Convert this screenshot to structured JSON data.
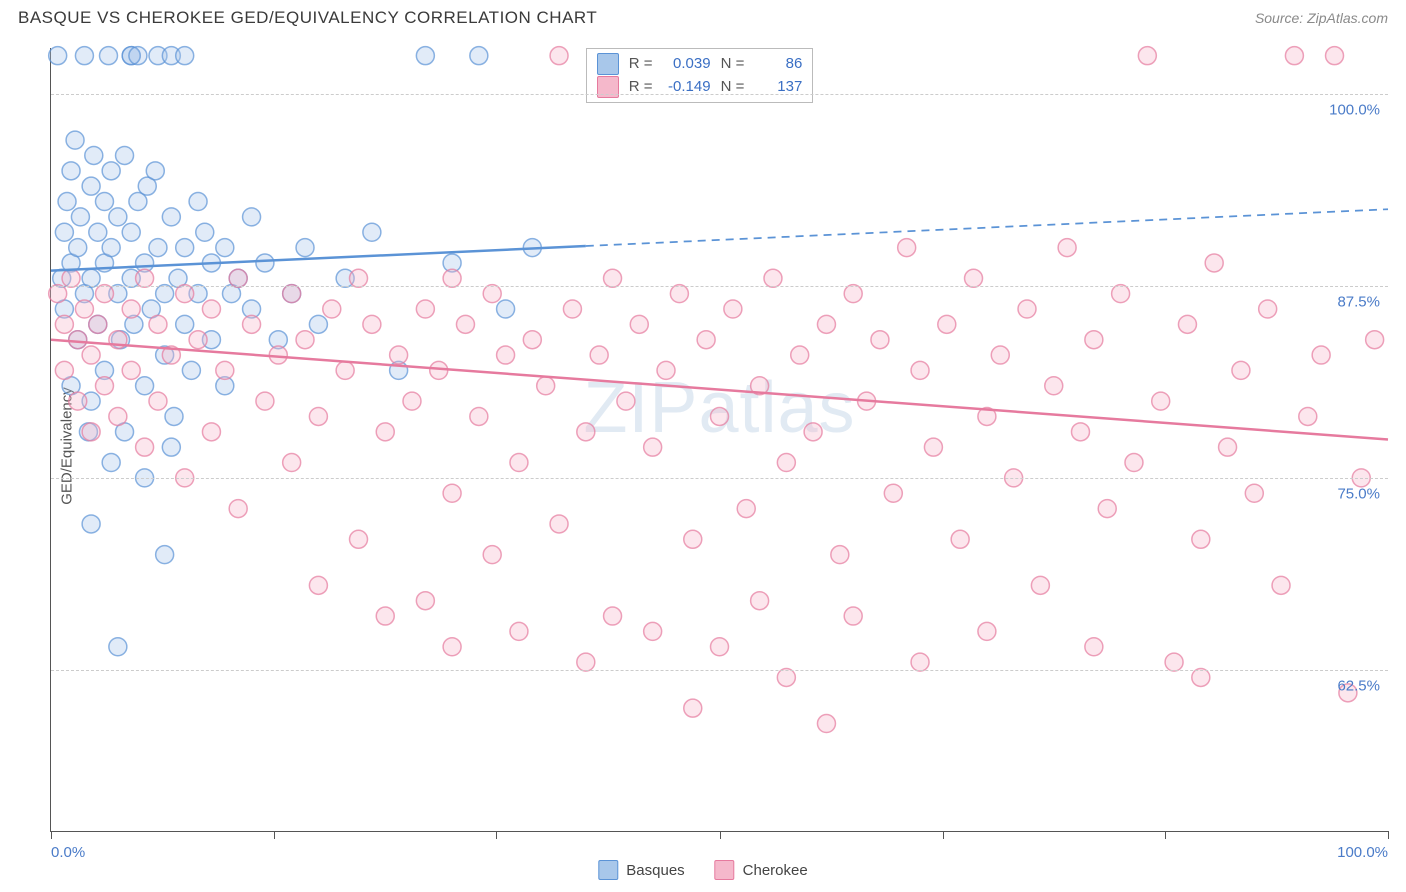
{
  "title": "BASQUE VS CHEROKEE GED/EQUIVALENCY CORRELATION CHART",
  "source": "Source: ZipAtlas.com",
  "watermark": "ZIPatlas",
  "ylabel": "GED/Equivalency",
  "chart": {
    "type": "scatter",
    "xlim": [
      0,
      100
    ],
    "ylim": [
      52,
      103
    ],
    "xtick_positions": [
      0,
      16.7,
      33.3,
      50,
      66.7,
      83.3,
      100
    ],
    "xtick_labels_shown": {
      "0": "0.0%",
      "100": "100.0%"
    },
    "ytick_positions": [
      62.5,
      75.0,
      87.5,
      100.0
    ],
    "ytick_labels": [
      "62.5%",
      "75.0%",
      "87.5%",
      "100.0%"
    ],
    "grid_color": "#cccccc",
    "background": "#ffffff",
    "axis_color": "#555555",
    "tick_label_color": "#4a7bc8",
    "marker_radius": 9,
    "marker_fill_opacity": 0.35,
    "marker_stroke_opacity": 0.7,
    "marker_stroke_width": 1.5,
    "trend_line_width": 2.5,
    "series": [
      {
        "name": "Basques",
        "color": "#5b93d6",
        "fill": "#a8c7ea",
        "stroke": "#5b93d6",
        "R": "0.039",
        "N": "86",
        "trend": {
          "x1": 0,
          "y1": 88.5,
          "x2": 100,
          "y2": 92.5,
          "solid_until_x": 40
        },
        "points": [
          [
            0.5,
            102.5
          ],
          [
            0.8,
            88
          ],
          [
            1,
            91
          ],
          [
            1,
            86
          ],
          [
            1.2,
            93
          ],
          [
            1.5,
            95
          ],
          [
            1.5,
            89
          ],
          [
            1.8,
            97
          ],
          [
            2,
            90
          ],
          [
            2,
            84
          ],
          [
            2.2,
            92
          ],
          [
            2.5,
            102.5
          ],
          [
            2.5,
            87
          ],
          [
            3,
            94
          ],
          [
            3,
            88
          ],
          [
            3,
            80
          ],
          [
            3.2,
            96
          ],
          [
            3.5,
            91
          ],
          [
            3.5,
            85
          ],
          [
            4,
            93
          ],
          [
            4,
            89
          ],
          [
            4,
            82
          ],
          [
            4.3,
            102.5
          ],
          [
            4.5,
            95
          ],
          [
            4.5,
            90
          ],
          [
            5,
            87
          ],
          [
            5,
            92
          ],
          [
            5.2,
            84
          ],
          [
            5.5,
            96
          ],
          [
            5.5,
            78
          ],
          [
            6,
            91
          ],
          [
            6,
            88
          ],
          [
            6,
            102.5
          ],
          [
            6.2,
            85
          ],
          [
            6.5,
            93
          ],
          [
            7,
            89
          ],
          [
            7,
            81
          ],
          [
            7.2,
            94
          ],
          [
            7.5,
            86
          ],
          [
            8,
            90
          ],
          [
            8,
            102.5
          ],
          [
            8.5,
            87
          ],
          [
            8.5,
            83
          ],
          [
            9,
            92
          ],
          [
            9,
            77
          ],
          [
            9,
            102.5
          ],
          [
            9.5,
            88
          ],
          [
            10,
            85
          ],
          [
            10,
            90
          ],
          [
            10.5,
            82
          ],
          [
            11,
            87
          ],
          [
            11,
            93
          ],
          [
            12,
            89
          ],
          [
            12,
            84
          ],
          [
            13,
            90
          ],
          [
            13,
            81
          ],
          [
            14,
            88
          ],
          [
            15,
            92
          ],
          [
            15,
            86
          ],
          [
            16,
            89
          ],
          [
            17,
            84
          ],
          [
            18,
            87
          ],
          [
            19,
            90
          ],
          [
            20,
            85
          ],
          [
            22,
            88
          ],
          [
            24,
            91
          ],
          [
            26,
            82
          ],
          [
            28,
            102.5
          ],
          [
            30,
            89
          ],
          [
            32,
            102.5
          ],
          [
            34,
            86
          ],
          [
            36,
            90
          ],
          [
            3,
            72
          ],
          [
            5,
            64
          ],
          [
            6,
            102.5
          ],
          [
            7,
            75
          ],
          [
            8.5,
            70
          ],
          [
            4.5,
            76
          ],
          [
            2.8,
            78
          ],
          [
            1.5,
            81
          ],
          [
            6.5,
            102.5
          ],
          [
            10,
            102.5
          ],
          [
            7.8,
            95
          ],
          [
            9.2,
            79
          ],
          [
            11.5,
            91
          ],
          [
            13.5,
            87
          ]
        ]
      },
      {
        "name": "Cherokee",
        "color": "#e67a9e",
        "fill": "#f5b8cb",
        "stroke": "#e67a9e",
        "R": "-0.149",
        "N": "137",
        "trend": {
          "x1": 0,
          "y1": 84,
          "x2": 100,
          "y2": 77.5,
          "solid_until_x": 100
        },
        "points": [
          [
            0.5,
            87
          ],
          [
            1,
            85
          ],
          [
            1,
            82
          ],
          [
            1.5,
            88
          ],
          [
            2,
            84
          ],
          [
            2,
            80
          ],
          [
            2.5,
            86
          ],
          [
            3,
            83
          ],
          [
            3,
            78
          ],
          [
            3.5,
            85
          ],
          [
            4,
            81
          ],
          [
            4,
            87
          ],
          [
            5,
            84
          ],
          [
            5,
            79
          ],
          [
            6,
            86
          ],
          [
            6,
            82
          ],
          [
            7,
            88
          ],
          [
            7,
            77
          ],
          [
            8,
            85
          ],
          [
            8,
            80
          ],
          [
            9,
            83
          ],
          [
            10,
            87
          ],
          [
            10,
            75
          ],
          [
            11,
            84
          ],
          [
            12,
            86
          ],
          [
            12,
            78
          ],
          [
            13,
            82
          ],
          [
            14,
            88
          ],
          [
            14,
            73
          ],
          [
            15,
            85
          ],
          [
            16,
            80
          ],
          [
            17,
            83
          ],
          [
            18,
            87
          ],
          [
            18,
            76
          ],
          [
            19,
            84
          ],
          [
            20,
            79
          ],
          [
            20,
            68
          ],
          [
            21,
            86
          ],
          [
            22,
            82
          ],
          [
            23,
            88
          ],
          [
            23,
            71
          ],
          [
            24,
            85
          ],
          [
            25,
            78
          ],
          [
            26,
            83
          ],
          [
            27,
            80
          ],
          [
            28,
            86
          ],
          [
            28,
            67
          ],
          [
            29,
            82
          ],
          [
            30,
            88
          ],
          [
            30,
            74
          ],
          [
            31,
            85
          ],
          [
            32,
            79
          ],
          [
            33,
            87
          ],
          [
            33,
            70
          ],
          [
            34,
            83
          ],
          [
            35,
            76
          ],
          [
            36,
            84
          ],
          [
            37,
            81
          ],
          [
            38,
            102.5
          ],
          [
            38,
            72
          ],
          [
            39,
            86
          ],
          [
            40,
            78
          ],
          [
            41,
            83
          ],
          [
            42,
            88
          ],
          [
            42,
            66
          ],
          [
            43,
            80
          ],
          [
            44,
            85
          ],
          [
            45,
            77
          ],
          [
            46,
            82
          ],
          [
            47,
            87
          ],
          [
            48,
            71
          ],
          [
            49,
            84
          ],
          [
            50,
            79
          ],
          [
            51,
            86
          ],
          [
            52,
            73
          ],
          [
            53,
            81
          ],
          [
            54,
            88
          ],
          [
            55,
            76
          ],
          [
            56,
            83
          ],
          [
            57,
            78
          ],
          [
            58,
            85
          ],
          [
            59,
            70
          ],
          [
            60,
            87
          ],
          [
            61,
            80
          ],
          [
            62,
            84
          ],
          [
            63,
            74
          ],
          [
            64,
            90
          ],
          [
            65,
            82
          ],
          [
            66,
            77
          ],
          [
            67,
            85
          ],
          [
            68,
            71
          ],
          [
            69,
            88
          ],
          [
            70,
            79
          ],
          [
            71,
            83
          ],
          [
            72,
            75
          ],
          [
            73,
            86
          ],
          [
            74,
            68
          ],
          [
            75,
            81
          ],
          [
            76,
            90
          ],
          [
            77,
            78
          ],
          [
            78,
            84
          ],
          [
            79,
            73
          ],
          [
            80,
            87
          ],
          [
            81,
            76
          ],
          [
            82,
            102.5
          ],
          [
            83,
            80
          ],
          [
            84,
            63
          ],
          [
            85,
            85
          ],
          [
            86,
            71
          ],
          [
            87,
            89
          ],
          [
            88,
            77
          ],
          [
            89,
            82
          ],
          [
            90,
            74
          ],
          [
            91,
            86
          ],
          [
            92,
            68
          ],
          [
            93,
            102.5
          ],
          [
            94,
            79
          ],
          [
            95,
            83
          ],
          [
            96,
            102.5
          ],
          [
            97,
            61
          ],
          [
            98,
            75
          ],
          [
            99,
            84
          ],
          [
            40,
            63
          ],
          [
            45,
            65
          ],
          [
            50,
            64
          ],
          [
            55,
            62
          ],
          [
            60,
            66
          ],
          [
            35,
            65
          ],
          [
            30,
            64
          ],
          [
            25,
            66
          ],
          [
            65,
            63
          ],
          [
            70,
            65
          ],
          [
            78,
            64
          ],
          [
            86,
            62
          ],
          [
            48,
            60
          ],
          [
            53,
            67
          ],
          [
            58,
            59
          ]
        ]
      }
    ]
  },
  "legend": {
    "items": [
      {
        "label": "Basques",
        "fill": "#a8c7ea",
        "stroke": "#5b93d6"
      },
      {
        "label": "Cherokee",
        "fill": "#f5b8cb",
        "stroke": "#e67a9e"
      }
    ]
  }
}
